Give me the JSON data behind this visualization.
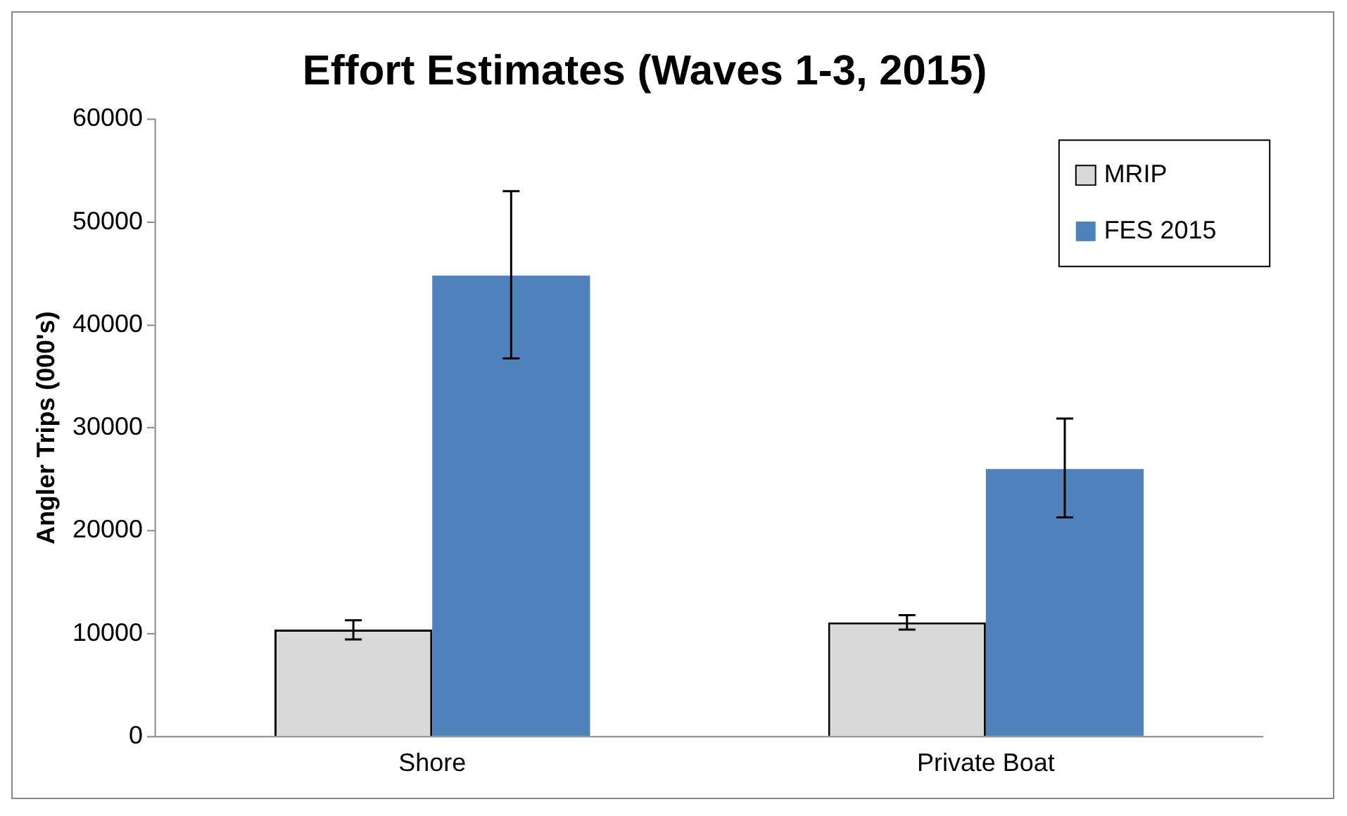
{
  "chart_data": {
    "type": "bar",
    "title": "Effort Estimates (Waves 1-3, 2015)",
    "ylabel": "Angler Trips (000's)",
    "categories": [
      "Shore",
      "Private Boat"
    ],
    "series": [
      {
        "name": "MRIP",
        "color": "#d9d9d9",
        "values": [
          10400,
          11100
        ],
        "errors": [
          [
            9450,
            11300
          ],
          [
            10400,
            11800
          ]
        ]
      },
      {
        "name": "FES 2015",
        "color": "#4f81bd",
        "values": [
          44800,
          26000
        ],
        "errors": [
          [
            36750,
            53000
          ],
          [
            21300,
            30900
          ]
        ]
      }
    ],
    "ylim": [
      0,
      60000
    ],
    "yticks": [
      0,
      10000,
      20000,
      30000,
      40000,
      50000,
      60000
    ],
    "grid": false,
    "legend": "top right"
  }
}
